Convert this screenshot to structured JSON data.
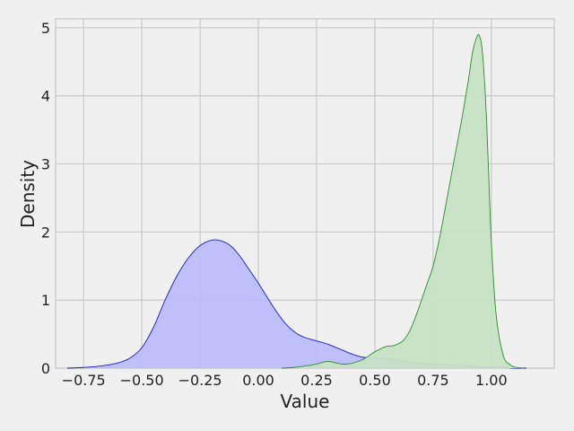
{
  "chart_data": {
    "type": "area",
    "title": "",
    "xlabel": "Value",
    "ylabel": "Density",
    "xlim": [
      -0.87,
      1.27
    ],
    "ylim": [
      0,
      5.13
    ],
    "xticks": [
      -0.75,
      -0.5,
      -0.25,
      0.0,
      0.25,
      0.5,
      0.75,
      1.0
    ],
    "xtick_labels": [
      "−0.75",
      "−0.50",
      "−0.25",
      "0.00",
      "0.25",
      "0.50",
      "0.75",
      "1.00"
    ],
    "yticks": [
      0,
      1,
      2,
      3,
      4,
      5
    ],
    "ytick_labels": [
      "0",
      "1",
      "2",
      "3",
      "4",
      "5"
    ],
    "grid": true,
    "legend": "none",
    "series": [
      {
        "fill": "#bcbcfb",
        "stroke": "#1a1acc",
        "x": [
          -0.82,
          -0.75,
          -0.68,
          -0.6,
          -0.55,
          -0.5,
          -0.45,
          -0.4,
          -0.35,
          -0.3,
          -0.25,
          -0.2,
          -0.16,
          -0.12,
          -0.08,
          -0.04,
          0.0,
          0.04,
          0.08,
          0.12,
          0.16,
          0.2,
          0.25,
          0.3,
          0.35,
          0.4,
          0.45,
          0.5,
          0.55,
          0.6,
          0.65,
          0.7,
          0.75,
          0.8,
          0.85,
          0.9,
          0.95,
          1.0,
          1.05,
          1.1,
          1.15
        ],
        "y": [
          0.0,
          0.01,
          0.03,
          0.08,
          0.15,
          0.3,
          0.6,
          1.0,
          1.35,
          1.62,
          1.8,
          1.88,
          1.87,
          1.8,
          1.65,
          1.45,
          1.25,
          1.03,
          0.82,
          0.64,
          0.52,
          0.45,
          0.4,
          0.35,
          0.28,
          0.21,
          0.16,
          0.15,
          0.14,
          0.12,
          0.09,
          0.07,
          0.06,
          0.05,
          0.04,
          0.03,
          0.02,
          0.02,
          0.01,
          0.0,
          0.0
        ]
      },
      {
        "fill": "#c5e2c3",
        "stroke": "#2e8b2e",
        "x": [
          0.1,
          0.15,
          0.2,
          0.25,
          0.28,
          0.3,
          0.33,
          0.36,
          0.4,
          0.45,
          0.5,
          0.55,
          0.58,
          0.62,
          0.65,
          0.68,
          0.72,
          0.75,
          0.78,
          0.81,
          0.84,
          0.87,
          0.9,
          0.92,
          0.94,
          0.95,
          0.96,
          0.97,
          0.98,
          0.99,
          1.0,
          1.02,
          1.05,
          1.08,
          1.11,
          1.14
        ],
        "y": [
          0.0,
          0.01,
          0.03,
          0.06,
          0.09,
          0.1,
          0.08,
          0.06,
          0.07,
          0.13,
          0.24,
          0.32,
          0.33,
          0.4,
          0.55,
          0.8,
          1.2,
          1.5,
          1.95,
          2.5,
          3.05,
          3.6,
          4.2,
          4.65,
          4.88,
          4.87,
          4.7,
          4.25,
          3.6,
          2.7,
          1.85,
          0.8,
          0.2,
          0.05,
          0.01,
          0.0
        ]
      }
    ]
  }
}
